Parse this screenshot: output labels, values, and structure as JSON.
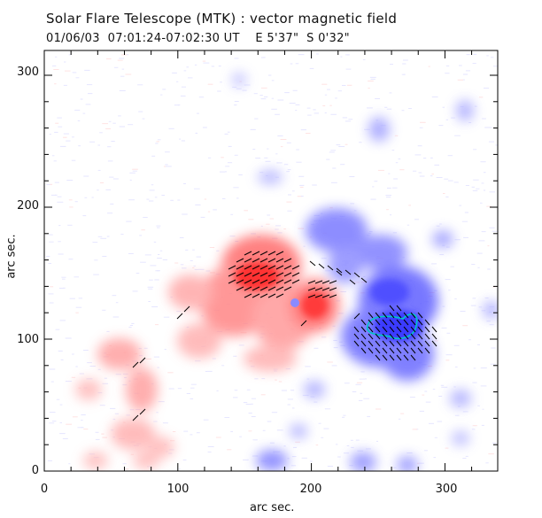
{
  "header": {
    "title": "Solar Flare Telescope (MTK) : vector magnetic field",
    "subtitle": "01/06/03  07:01:24-07:02:30 UT    E 5'37\"  S 0'32\""
  },
  "axes": {
    "xlabel": "arc sec.",
    "ylabel": "arc sec.",
    "xlim": [
      0,
      340
    ],
    "ylim": [
      0,
      320
    ],
    "xticks": [
      "0",
      "100",
      "200",
      "300"
    ],
    "yticks": [
      "0",
      "100",
      "200",
      "300"
    ]
  },
  "colors": {
    "positive_polarity": "#ff5a5a",
    "negative_polarity": "#5f5fff",
    "contour": "#00c8c8",
    "vectors": "#000000"
  }
}
